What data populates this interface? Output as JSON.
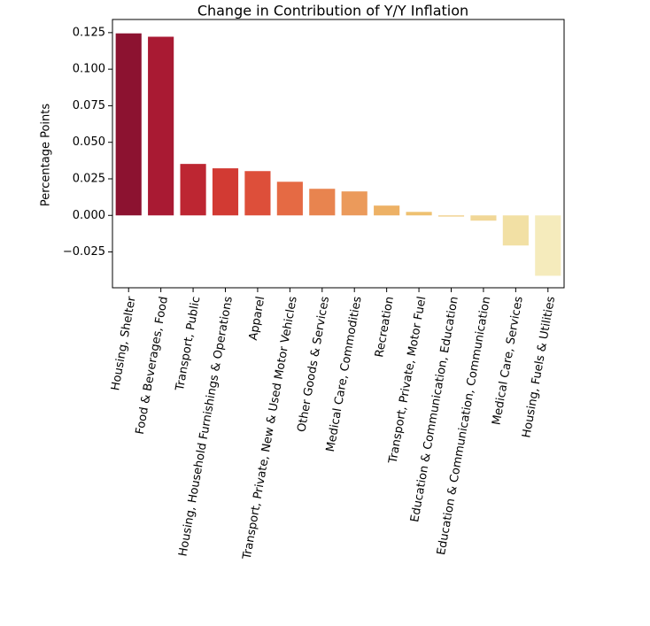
{
  "chart_data": {
    "type": "bar",
    "title": "Change in Contribution of Y/Y Inflation",
    "y_label": "Percentage Points",
    "categories": [
      "Housing, Shelter",
      "Food & Beverages, Food",
      "Transport, Public",
      "Housing, Household Furnishings & Operations",
      "Apparel",
      "Transport, Private, New & Used Motor Vehicles",
      "Other Goods & Services",
      "Medical Care, Commodities",
      "Recreation",
      "Transport, Private, Motor Fuel",
      "Education & Communication, Education",
      "Education & Communication, Communication",
      "Medical Care, Services",
      "Housing, Fuels & Utilities"
    ],
    "values": [
      0.1245,
      0.1222,
      0.0352,
      0.0322,
      0.0303,
      0.023,
      0.0182,
      0.0164,
      0.0067,
      0.0024,
      -0.0008,
      -0.0036,
      -0.0206,
      -0.0413
    ],
    "colors": [
      "#8c1230",
      "#a91a33",
      "#bd2632",
      "#d23a33",
      "#dd4f3a",
      "#e56a44",
      "#e8844f",
      "#eb9a5b",
      "#edb165",
      "#eec171",
      "#f0cd85",
      "#f1d797",
      "#f2e0a4",
      "#f5ebbc"
    ],
    "ylim": [
      -0.0495,
      0.134
    ],
    "yticks": [
      {
        "value": -0.025,
        "label": "−0.025"
      },
      {
        "value": 0,
        "label": "0.000"
      },
      {
        "value": 0.025,
        "label": "0.025"
      },
      {
        "value": 0.05,
        "label": "0.050"
      },
      {
        "value": 0.075,
        "label": "0.075"
      },
      {
        "value": 0.1,
        "label": "0.100"
      },
      {
        "value": 0.125,
        "label": "0.125"
      }
    ]
  }
}
